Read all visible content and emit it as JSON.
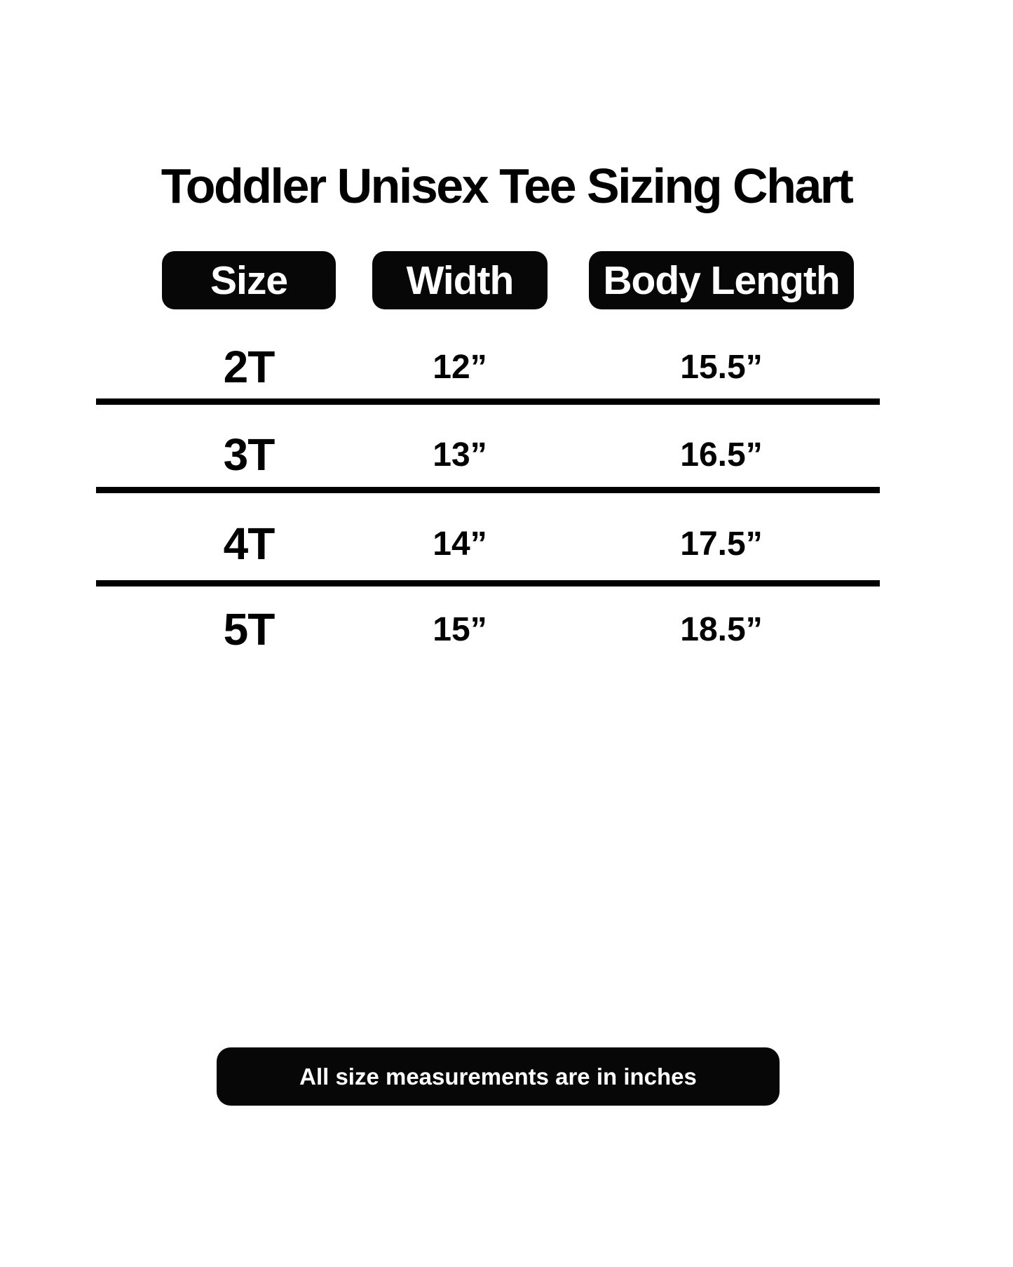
{
  "title": "Toddler Unisex Tee Sizing Chart",
  "chart_data": {
    "type": "table",
    "title": "Toddler Unisex Tee Sizing Chart",
    "columns": [
      "Size",
      "Width",
      "Body Length"
    ],
    "rows": [
      [
        "2T",
        "12”",
        "15.5”"
      ],
      [
        "3T",
        "13”",
        "16.5”"
      ],
      [
        "4T",
        "14”",
        "17.5”"
      ],
      [
        "5T",
        "15”",
        "18.5”"
      ]
    ],
    "units": "inches",
    "footnote": "All size measurements are in inches",
    "layout": {
      "header_style": "black rounded pills, white bold text",
      "row_dividers": "thick black horizontal rules between rows",
      "grid": "off"
    }
  },
  "footer": {
    "note": "All size measurements are in inches"
  },
  "colors": {
    "background": "#ffffff",
    "text": "#000000",
    "badge_bg": "#070707",
    "badge_text": "#ffffff",
    "rule": "#000000"
  }
}
